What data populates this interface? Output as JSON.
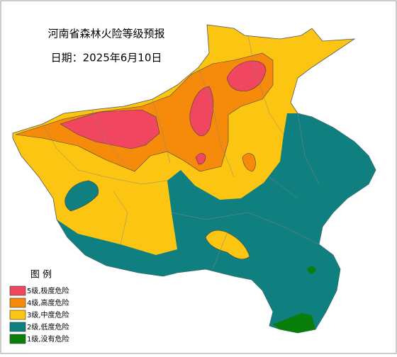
{
  "header": {
    "title": "河南省森林火险等级预报",
    "date": "日期：2025年6月10日"
  },
  "legend": {
    "title": "图  例",
    "items": [
      {
        "label": "5级,极度危险",
        "color": "#f0465f"
      },
      {
        "label": "4级,高度危险",
        "color": "#f58a0b"
      },
      {
        "label": "3级,中度危险",
        "color": "#fcc511"
      },
      {
        "label": "2级,低度危险",
        "color": "#0f7f7f"
      },
      {
        "label": "1级,没有危险",
        "color": "#0a7e0a"
      }
    ]
  }
}
